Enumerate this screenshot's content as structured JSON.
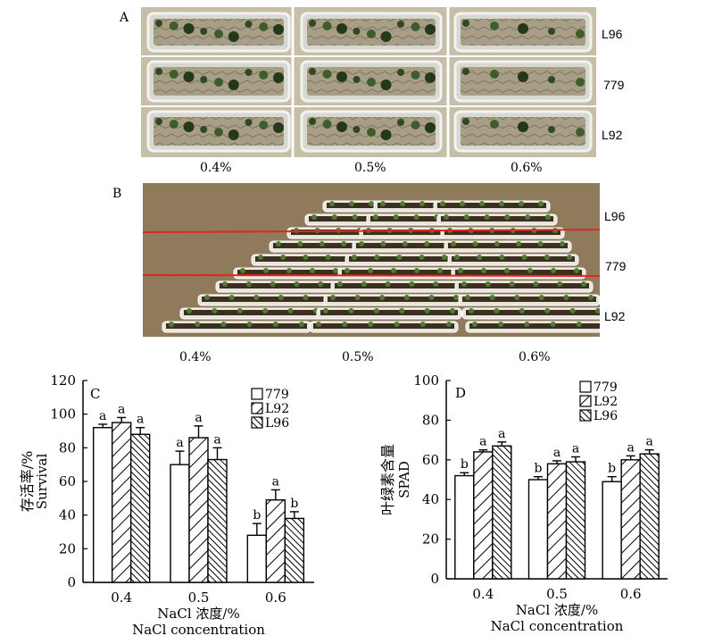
{
  "panels": {
    "a": {
      "letter": "A",
      "rows": [
        "L96",
        "779",
        "L92"
      ],
      "concentrations": [
        "0.4%",
        "0.5%",
        "0.6%"
      ]
    },
    "b": {
      "letter": "B",
      "rows": [
        "L96",
        "779",
        "L92"
      ],
      "concentrations": [
        "0.4%",
        "0.5%",
        "0.6%"
      ],
      "line_color": "#e0281e"
    }
  },
  "chart_data": [
    {
      "letter": "C",
      "type": "bar",
      "categories": [
        "0.4",
        "0.5",
        "0.6"
      ],
      "series": [
        {
          "name": "779",
          "values": [
            92,
            70,
            28
          ],
          "errors": [
            2,
            8,
            7
          ],
          "letters": [
            "a",
            "a",
            "b"
          ],
          "pattern": "open"
        },
        {
          "name": "L92",
          "values": [
            95,
            86,
            49
          ],
          "errors": [
            3,
            7,
            6
          ],
          "letters": [
            "a",
            "a",
            "a"
          ],
          "pattern": "hatch-right"
        },
        {
          "name": "L96",
          "values": [
            88,
            73,
            38
          ],
          "errors": [
            4,
            7,
            4
          ],
          "letters": [
            "a",
            "a",
            "b"
          ],
          "pattern": "hatch-dense"
        }
      ],
      "ylabel_cn": "存活率/%",
      "ylabel_en": "Survival",
      "xlabel_cn": "NaCl 浓度/%",
      "xlabel_en": "NaCl concentration",
      "ylim": [
        0,
        120
      ],
      "yticks": [
        "0",
        "20",
        "40",
        "60",
        "80",
        "100",
        "120"
      ],
      "legend": "top-right",
      "grid": false
    },
    {
      "letter": "D",
      "type": "bar",
      "categories": [
        "0.4",
        "0.5",
        "0.6"
      ],
      "series": [
        {
          "name": "779",
          "values": [
            52,
            50,
            49
          ],
          "errors": [
            1.5,
            1.5,
            2.5
          ],
          "letters": [
            "b",
            "b",
            "b"
          ],
          "pattern": "open"
        },
        {
          "name": "L92",
          "values": [
            64,
            58,
            60
          ],
          "errors": [
            1,
            1.5,
            2
          ],
          "letters": [
            "a",
            "a",
            "a"
          ],
          "pattern": "hatch-right"
        },
        {
          "name": "L96",
          "values": [
            67,
            59,
            63
          ],
          "errors": [
            2,
            2.5,
            2
          ],
          "letters": [
            "a",
            "a",
            "a"
          ],
          "pattern": "hatch-dense"
        }
      ],
      "ylabel_cn": "叶绿素含量",
      "ylabel_en": "SPAD",
      "xlabel_cn": "NaCl 浓度/%",
      "xlabel_en": "NaCl concentration",
      "ylim": [
        0,
        100
      ],
      "yticks": [
        "0",
        "20",
        "40",
        "60",
        "80",
        "100"
      ],
      "legend": "top-center",
      "grid": false
    }
  ]
}
